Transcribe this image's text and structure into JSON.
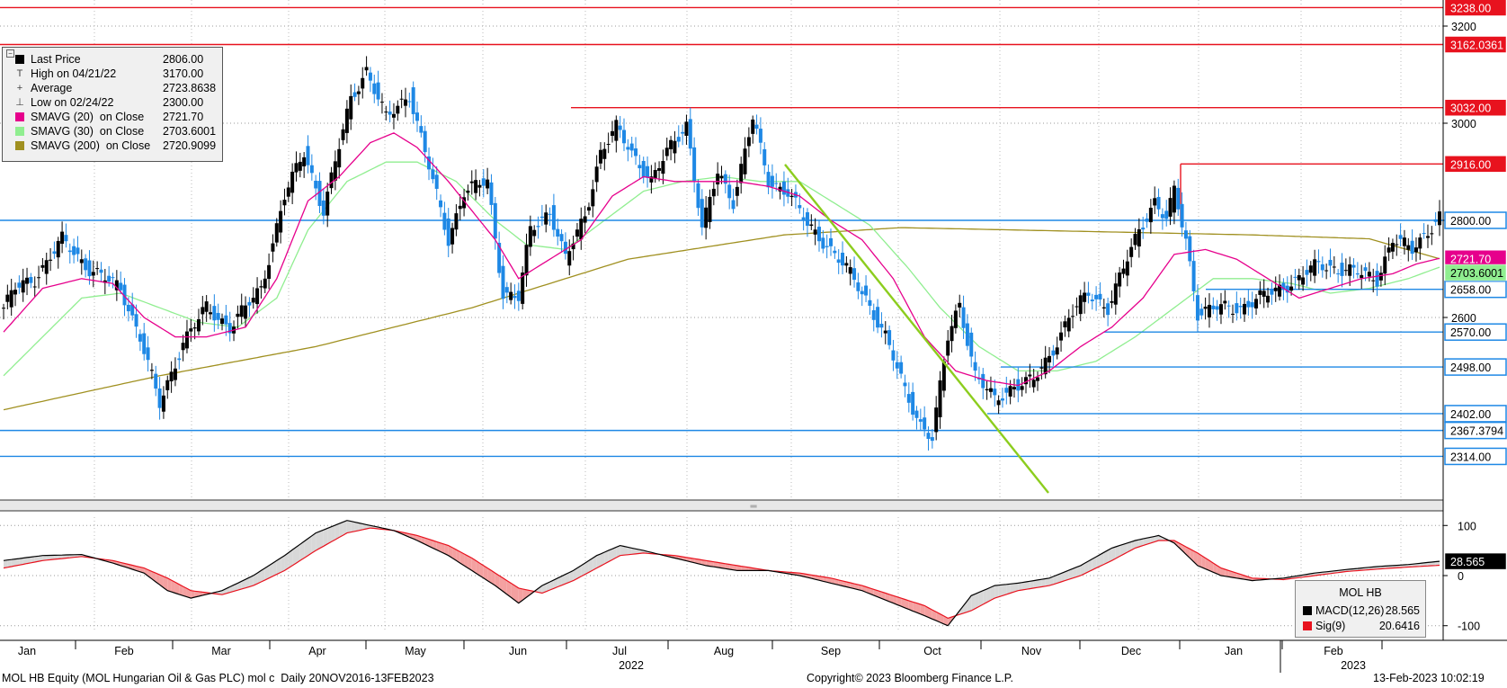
{
  "chart_data": [
    {
      "type": "candlestick",
      "instrument": "MOL HB",
      "y_axis_ticks": [
        2600,
        2800,
        3000,
        3200
      ],
      "x_axis_months": [
        "Jan",
        "Feb",
        "Mar",
        "Apr",
        "May",
        "Jun",
        "Jul",
        "Aug",
        "Sep",
        "Oct",
        "Nov",
        "Dec",
        "Jan",
        "Feb"
      ],
      "x_axis_years": [
        "2022",
        "2023"
      ],
      "legend": [
        {
          "label": "Last Price",
          "value": "2806.00",
          "color": "#000000",
          "glyph": ""
        },
        {
          "label": "High on 04/21/22",
          "value": "3170.00",
          "color": "",
          "glyph": "T"
        },
        {
          "label": "Average",
          "value": "2723.8638",
          "color": "",
          "glyph": "+"
        },
        {
          "label": "Low on 02/24/22",
          "value": "2300.00",
          "color": "",
          "glyph": "⊥"
        },
        {
          "label": "SMAVG (20)  on Close",
          "value": "2721.70",
          "color": "#e6008c",
          "glyph": ""
        },
        {
          "label": "SMAVG (30)  on Close",
          "value": "2703.6001",
          "color": "#90ee90",
          "glyph": ""
        },
        {
          "label": "SMAVG (200)  on Close",
          "value": "2720.9099",
          "color": "#a09020",
          "glyph": ""
        }
      ],
      "horizontal_levels": [
        {
          "value": 3238.0,
          "label": "3238.00",
          "color": "#e8121e"
        },
        {
          "value": 3162.0361,
          "label": "3162.0361",
          "color": "#e8121e"
        },
        {
          "value": 3032.0,
          "label": "3032.00",
          "color": "#e8121e"
        },
        {
          "value": 2916.0,
          "label": "2916.00",
          "color": "#e8121e"
        },
        {
          "value": 2800.0,
          "label": "2800.00",
          "color": "#1e88e5"
        },
        {
          "value": 2658.0,
          "label": "2658.00",
          "color": "#1e88e5"
        },
        {
          "value": 2570.0,
          "label": "2570.00",
          "color": "#1e88e5"
        },
        {
          "value": 2498.0,
          "label": "2498.00",
          "color": "#1e88e5"
        },
        {
          "value": 2402.0,
          "label": "2402.00",
          "color": "#1e88e5"
        },
        {
          "value": 2367.3794,
          "label": "2367.3794",
          "color": "#1e88e5"
        },
        {
          "value": 2314.0,
          "label": "2314.00",
          "color": "#1e88e5"
        }
      ],
      "value_tags": [
        {
          "value": 2721.7,
          "label": "2721.70",
          "color": "#e6008c"
        },
        {
          "value": 2703.6001,
          "label": "2703.6001",
          "color": "#90ee90"
        }
      ],
      "close_anchors": [
        [
          0,
          2620
        ],
        [
          3,
          2660
        ],
        [
          8,
          2680
        ],
        [
          15,
          2760
        ],
        [
          22,
          2700
        ],
        [
          30,
          2660
        ],
        [
          35,
          2560
        ],
        [
          40,
          2420
        ],
        [
          46,
          2550
        ],
        [
          52,
          2620
        ],
        [
          58,
          2580
        ],
        [
          66,
          2660
        ],
        [
          72,
          2850
        ],
        [
          77,
          2940
        ],
        [
          82,
          2820
        ],
        [
          89,
          3050
        ],
        [
          93,
          3110
        ],
        [
          98,
          3010
        ],
        [
          104,
          3060
        ],
        [
          108,
          2940
        ],
        [
          114,
          2760
        ],
        [
          118,
          2860
        ],
        [
          124,
          2880
        ],
        [
          128,
          2650
        ],
        [
          132,
          2640
        ],
        [
          135,
          2780
        ],
        [
          140,
          2820
        ],
        [
          144,
          2720
        ],
        [
          149,
          2810
        ],
        [
          153,
          2940
        ],
        [
          157,
          2990
        ],
        [
          161,
          2940
        ],
        [
          166,
          2880
        ],
        [
          170,
          2940
        ],
        [
          175,
          3000
        ],
        [
          179,
          2780
        ],
        [
          183,
          2900
        ],
        [
          187,
          2840
        ],
        [
          192,
          3010
        ],
        [
          196,
          2880
        ],
        [
          201,
          2860
        ],
        [
          206,
          2790
        ],
        [
          211,
          2750
        ],
        [
          216,
          2700
        ],
        [
          221,
          2640
        ],
        [
          226,
          2560
        ],
        [
          231,
          2450
        ],
        [
          235,
          2380
        ],
        [
          238,
          2350
        ],
        [
          242,
          2560
        ],
        [
          245,
          2630
        ],
        [
          249,
          2480
        ],
        [
          254,
          2430
        ],
        [
          259,
          2460
        ],
        [
          264,
          2470
        ],
        [
          268,
          2520
        ],
        [
          273,
          2600
        ],
        [
          278,
          2650
        ],
        [
          283,
          2620
        ],
        [
          287,
          2700
        ],
        [
          291,
          2780
        ],
        [
          295,
          2840
        ],
        [
          298,
          2800
        ],
        [
          300,
          2860
        ],
        [
          303,
          2760
        ],
        [
          306,
          2610
        ],
        [
          311,
          2620
        ],
        [
          317,
          2620
        ],
        [
          322,
          2640
        ],
        [
          327,
          2660
        ],
        [
          332,
          2680
        ],
        [
          337,
          2710
        ],
        [
          342,
          2700
        ],
        [
          348,
          2690
        ],
        [
          352,
          2680
        ],
        [
          356,
          2760
        ],
        [
          361,
          2740
        ],
        [
          364,
          2770
        ],
        [
          368,
          2806
        ]
      ],
      "sma20_anchors": [
        [
          0,
          2570
        ],
        [
          10,
          2660
        ],
        [
          20,
          2680
        ],
        [
          28,
          2670
        ],
        [
          36,
          2600
        ],
        [
          44,
          2560
        ],
        [
          52,
          2560
        ],
        [
          62,
          2580
        ],
        [
          70,
          2680
        ],
        [
          78,
          2840
        ],
        [
          86,
          2890
        ],
        [
          94,
          2960
        ],
        [
          100,
          2980
        ],
        [
          106,
          2950
        ],
        [
          114,
          2880
        ],
        [
          120,
          2820
        ],
        [
          126,
          2760
        ],
        [
          132,
          2680
        ],
        [
          140,
          2720
        ],
        [
          148,
          2760
        ],
        [
          156,
          2850
        ],
        [
          164,
          2890
        ],
        [
          172,
          2880
        ],
        [
          180,
          2880
        ],
        [
          188,
          2880
        ],
        [
          196,
          2870
        ],
        [
          204,
          2850
        ],
        [
          212,
          2800
        ],
        [
          220,
          2760
        ],
        [
          228,
          2680
        ],
        [
          236,
          2560
        ],
        [
          244,
          2490
        ],
        [
          252,
          2470
        ],
        [
          260,
          2460
        ],
        [
          268,
          2490
        ],
        [
          276,
          2540
        ],
        [
          284,
          2580
        ],
        [
          292,
          2640
        ],
        [
          300,
          2730
        ],
        [
          308,
          2740
        ],
        [
          316,
          2720
        ],
        [
          324,
          2680
        ],
        [
          332,
          2640
        ],
        [
          340,
          2660
        ],
        [
          348,
          2680
        ],
        [
          356,
          2690
        ],
        [
          362,
          2710
        ],
        [
          368,
          2721.7
        ]
      ],
      "sma30_anchors": [
        [
          0,
          2480
        ],
        [
          10,
          2560
        ],
        [
          20,
          2640
        ],
        [
          30,
          2650
        ],
        [
          40,
          2620
        ],
        [
          50,
          2590
        ],
        [
          60,
          2580
        ],
        [
          70,
          2640
        ],
        [
          78,
          2780
        ],
        [
          88,
          2880
        ],
        [
          98,
          2920
        ],
        [
          106,
          2920
        ],
        [
          116,
          2880
        ],
        [
          126,
          2800
        ],
        [
          134,
          2750
        ],
        [
          144,
          2740
        ],
        [
          154,
          2800
        ],
        [
          164,
          2860
        ],
        [
          174,
          2880
        ],
        [
          184,
          2890
        ],
        [
          194,
          2880
        ],
        [
          204,
          2880
        ],
        [
          212,
          2840
        ],
        [
          222,
          2790
        ],
        [
          232,
          2700
        ],
        [
          240,
          2620
        ],
        [
          250,
          2540
        ],
        [
          260,
          2490
        ],
        [
          270,
          2490
        ],
        [
          280,
          2510
        ],
        [
          290,
          2560
        ],
        [
          300,
          2620
        ],
        [
          310,
          2680
        ],
        [
          320,
          2680
        ],
        [
          330,
          2670
        ],
        [
          340,
          2650
        ],
        [
          350,
          2660
        ],
        [
          360,
          2680
        ],
        [
          368,
          2703.6
        ]
      ],
      "sma200_anchors": [
        [
          0,
          2410
        ],
        [
          40,
          2480
        ],
        [
          80,
          2540
        ],
        [
          120,
          2620
        ],
        [
          160,
          2720
        ],
        [
          200,
          2770
        ],
        [
          230,
          2785
        ],
        [
          260,
          2780
        ],
        [
          290,
          2775
        ],
        [
          320,
          2770
        ],
        [
          350,
          2762
        ],
        [
          368,
          2720.9
        ]
      ]
    },
    {
      "type": "line",
      "title": "MOL HB",
      "y_axis_ticks": [
        -100,
        0,
        100
      ],
      "series": [
        {
          "name": "MACD(12,26)",
          "value_label": "28.565",
          "color": "#000000",
          "anchors": [
            [
              0,
              30
            ],
            [
              10,
              40
            ],
            [
              20,
              42
            ],
            [
              28,
              25
            ],
            [
              36,
              5
            ],
            [
              42,
              -30
            ],
            [
              48,
              -45
            ],
            [
              56,
              -30
            ],
            [
              64,
              0
            ],
            [
              72,
              40
            ],
            [
              80,
              85
            ],
            [
              88,
              110
            ],
            [
              94,
              100
            ],
            [
              100,
              90
            ],
            [
              106,
              70
            ],
            [
              114,
              40
            ],
            [
              120,
              10
            ],
            [
              126,
              -20
            ],
            [
              132,
              -55
            ],
            [
              138,
              -20
            ],
            [
              146,
              10
            ],
            [
              152,
              40
            ],
            [
              158,
              60
            ],
            [
              164,
              50
            ],
            [
              172,
              35
            ],
            [
              180,
              20
            ],
            [
              188,
              10
            ],
            [
              196,
              10
            ],
            [
              204,
              0
            ],
            [
              212,
              -15
            ],
            [
              220,
              -30
            ],
            [
              228,
              -55
            ],
            [
              236,
              -80
            ],
            [
              242,
              -100
            ],
            [
              248,
              -40
            ],
            [
              254,
              -20
            ],
            [
              260,
              -15
            ],
            [
              268,
              -5
            ],
            [
              276,
              20
            ],
            [
              284,
              55
            ],
            [
              290,
              70
            ],
            [
              296,
              80
            ],
            [
              300,
              65
            ],
            [
              306,
              20
            ],
            [
              312,
              0
            ],
            [
              320,
              -10
            ],
            [
              328,
              -5
            ],
            [
              336,
              5
            ],
            [
              344,
              12
            ],
            [
              352,
              18
            ],
            [
              360,
              22
            ],
            [
              368,
              28.6
            ]
          ]
        },
        {
          "name": "Sig(9)",
          "value_label": "20.6416",
          "color": "#e8121e",
          "anchors": [
            [
              0,
              15
            ],
            [
              10,
              30
            ],
            [
              20,
              38
            ],
            [
              28,
              30
            ],
            [
              36,
              15
            ],
            [
              42,
              -5
            ],
            [
              48,
              -30
            ],
            [
              56,
              -38
            ],
            [
              64,
              -20
            ],
            [
              72,
              10
            ],
            [
              80,
              50
            ],
            [
              88,
              85
            ],
            [
              94,
              95
            ],
            [
              100,
              90
            ],
            [
              106,
              80
            ],
            [
              114,
              60
            ],
            [
              120,
              35
            ],
            [
              126,
              5
            ],
            [
              132,
              -25
            ],
            [
              138,
              -35
            ],
            [
              146,
              -10
            ],
            [
              152,
              15
            ],
            [
              158,
              40
            ],
            [
              164,
              45
            ],
            [
              172,
              40
            ],
            [
              180,
              30
            ],
            [
              188,
              20
            ],
            [
              196,
              10
            ],
            [
              204,
              5
            ],
            [
              212,
              -5
            ],
            [
              220,
              -20
            ],
            [
              228,
              -40
            ],
            [
              236,
              -60
            ],
            [
              242,
              -85
            ],
            [
              248,
              -70
            ],
            [
              254,
              -45
            ],
            [
              260,
              -30
            ],
            [
              268,
              -20
            ],
            [
              276,
              0
            ],
            [
              284,
              30
            ],
            [
              290,
              55
            ],
            [
              296,
              70
            ],
            [
              300,
              70
            ],
            [
              306,
              45
            ],
            [
              312,
              15
            ],
            [
              320,
              -5
            ],
            [
              328,
              -8
            ],
            [
              336,
              0
            ],
            [
              344,
              8
            ],
            [
              352,
              13
            ],
            [
              360,
              17
            ],
            [
              368,
              20.6
            ]
          ]
        }
      ]
    }
  ],
  "footer": {
    "left": "MOL HB Equity (MOL Hungarian Oil & Gas PLC) mol c  Daily 20NOV2016-13FEB2023",
    "center": "Copyright© 2023 Bloomberg Finance L.P.",
    "right": "13-Feb-2023 10:02:19"
  },
  "colors": {
    "up": "#000000",
    "down": "#1e88e5",
    "trendline": "#8ccd1e",
    "hist_pos": "#d8d8d8",
    "hist_neg": "#f4a0a0"
  }
}
